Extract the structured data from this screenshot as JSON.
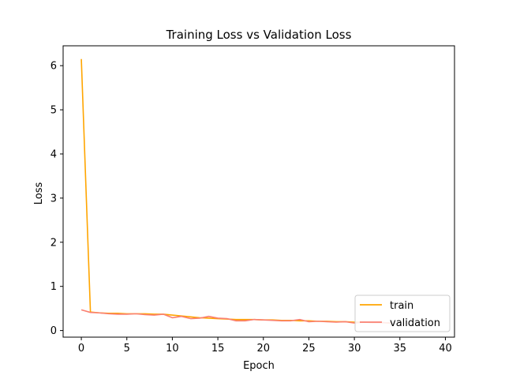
{
  "chart_data": {
    "type": "line",
    "title": "Training Loss vs Validation Loss",
    "xlabel": "Epoch",
    "ylabel": "Loss",
    "xlim": [
      -2,
      41
    ],
    "ylim": [
      -0.15,
      6.45
    ],
    "xticks": [
      0,
      5,
      10,
      15,
      20,
      25,
      30,
      35,
      40
    ],
    "yticks": [
      0,
      1,
      2,
      3,
      4,
      5,
      6
    ],
    "grid": false,
    "legend_position": "lower-right",
    "x": [
      0,
      1,
      2,
      3,
      4,
      5,
      6,
      7,
      8,
      9,
      10,
      11,
      12,
      13,
      14,
      15,
      16,
      17,
      18,
      19,
      20,
      21,
      22,
      23,
      24,
      25,
      26,
      27,
      28,
      29,
      30,
      31,
      32,
      33,
      34
    ],
    "series": [
      {
        "name": "train",
        "color": "#ffa500",
        "values": [
          6.15,
          0.42,
          0.4,
          0.39,
          0.39,
          0.38,
          0.38,
          0.38,
          0.37,
          0.37,
          0.35,
          0.33,
          0.31,
          0.29,
          0.28,
          0.27,
          0.26,
          0.25,
          0.25,
          0.25,
          0.24,
          0.24,
          0.23,
          0.23,
          0.22,
          0.22,
          0.21,
          0.21,
          0.2,
          0.2,
          0.19,
          0.19,
          0.18,
          0.18,
          0.17
        ]
      },
      {
        "name": "validation",
        "color": "#fa8072",
        "values": [
          0.47,
          0.41,
          0.4,
          0.38,
          0.37,
          0.37,
          0.38,
          0.36,
          0.35,
          0.37,
          0.29,
          0.32,
          0.27,
          0.28,
          0.32,
          0.28,
          0.27,
          0.22,
          0.22,
          0.25,
          0.24,
          0.23,
          0.22,
          0.22,
          0.25,
          0.2,
          0.21,
          0.2,
          0.19,
          0.2,
          0.17,
          0.19,
          0.18,
          0.18,
          0.17
        ]
      }
    ]
  }
}
